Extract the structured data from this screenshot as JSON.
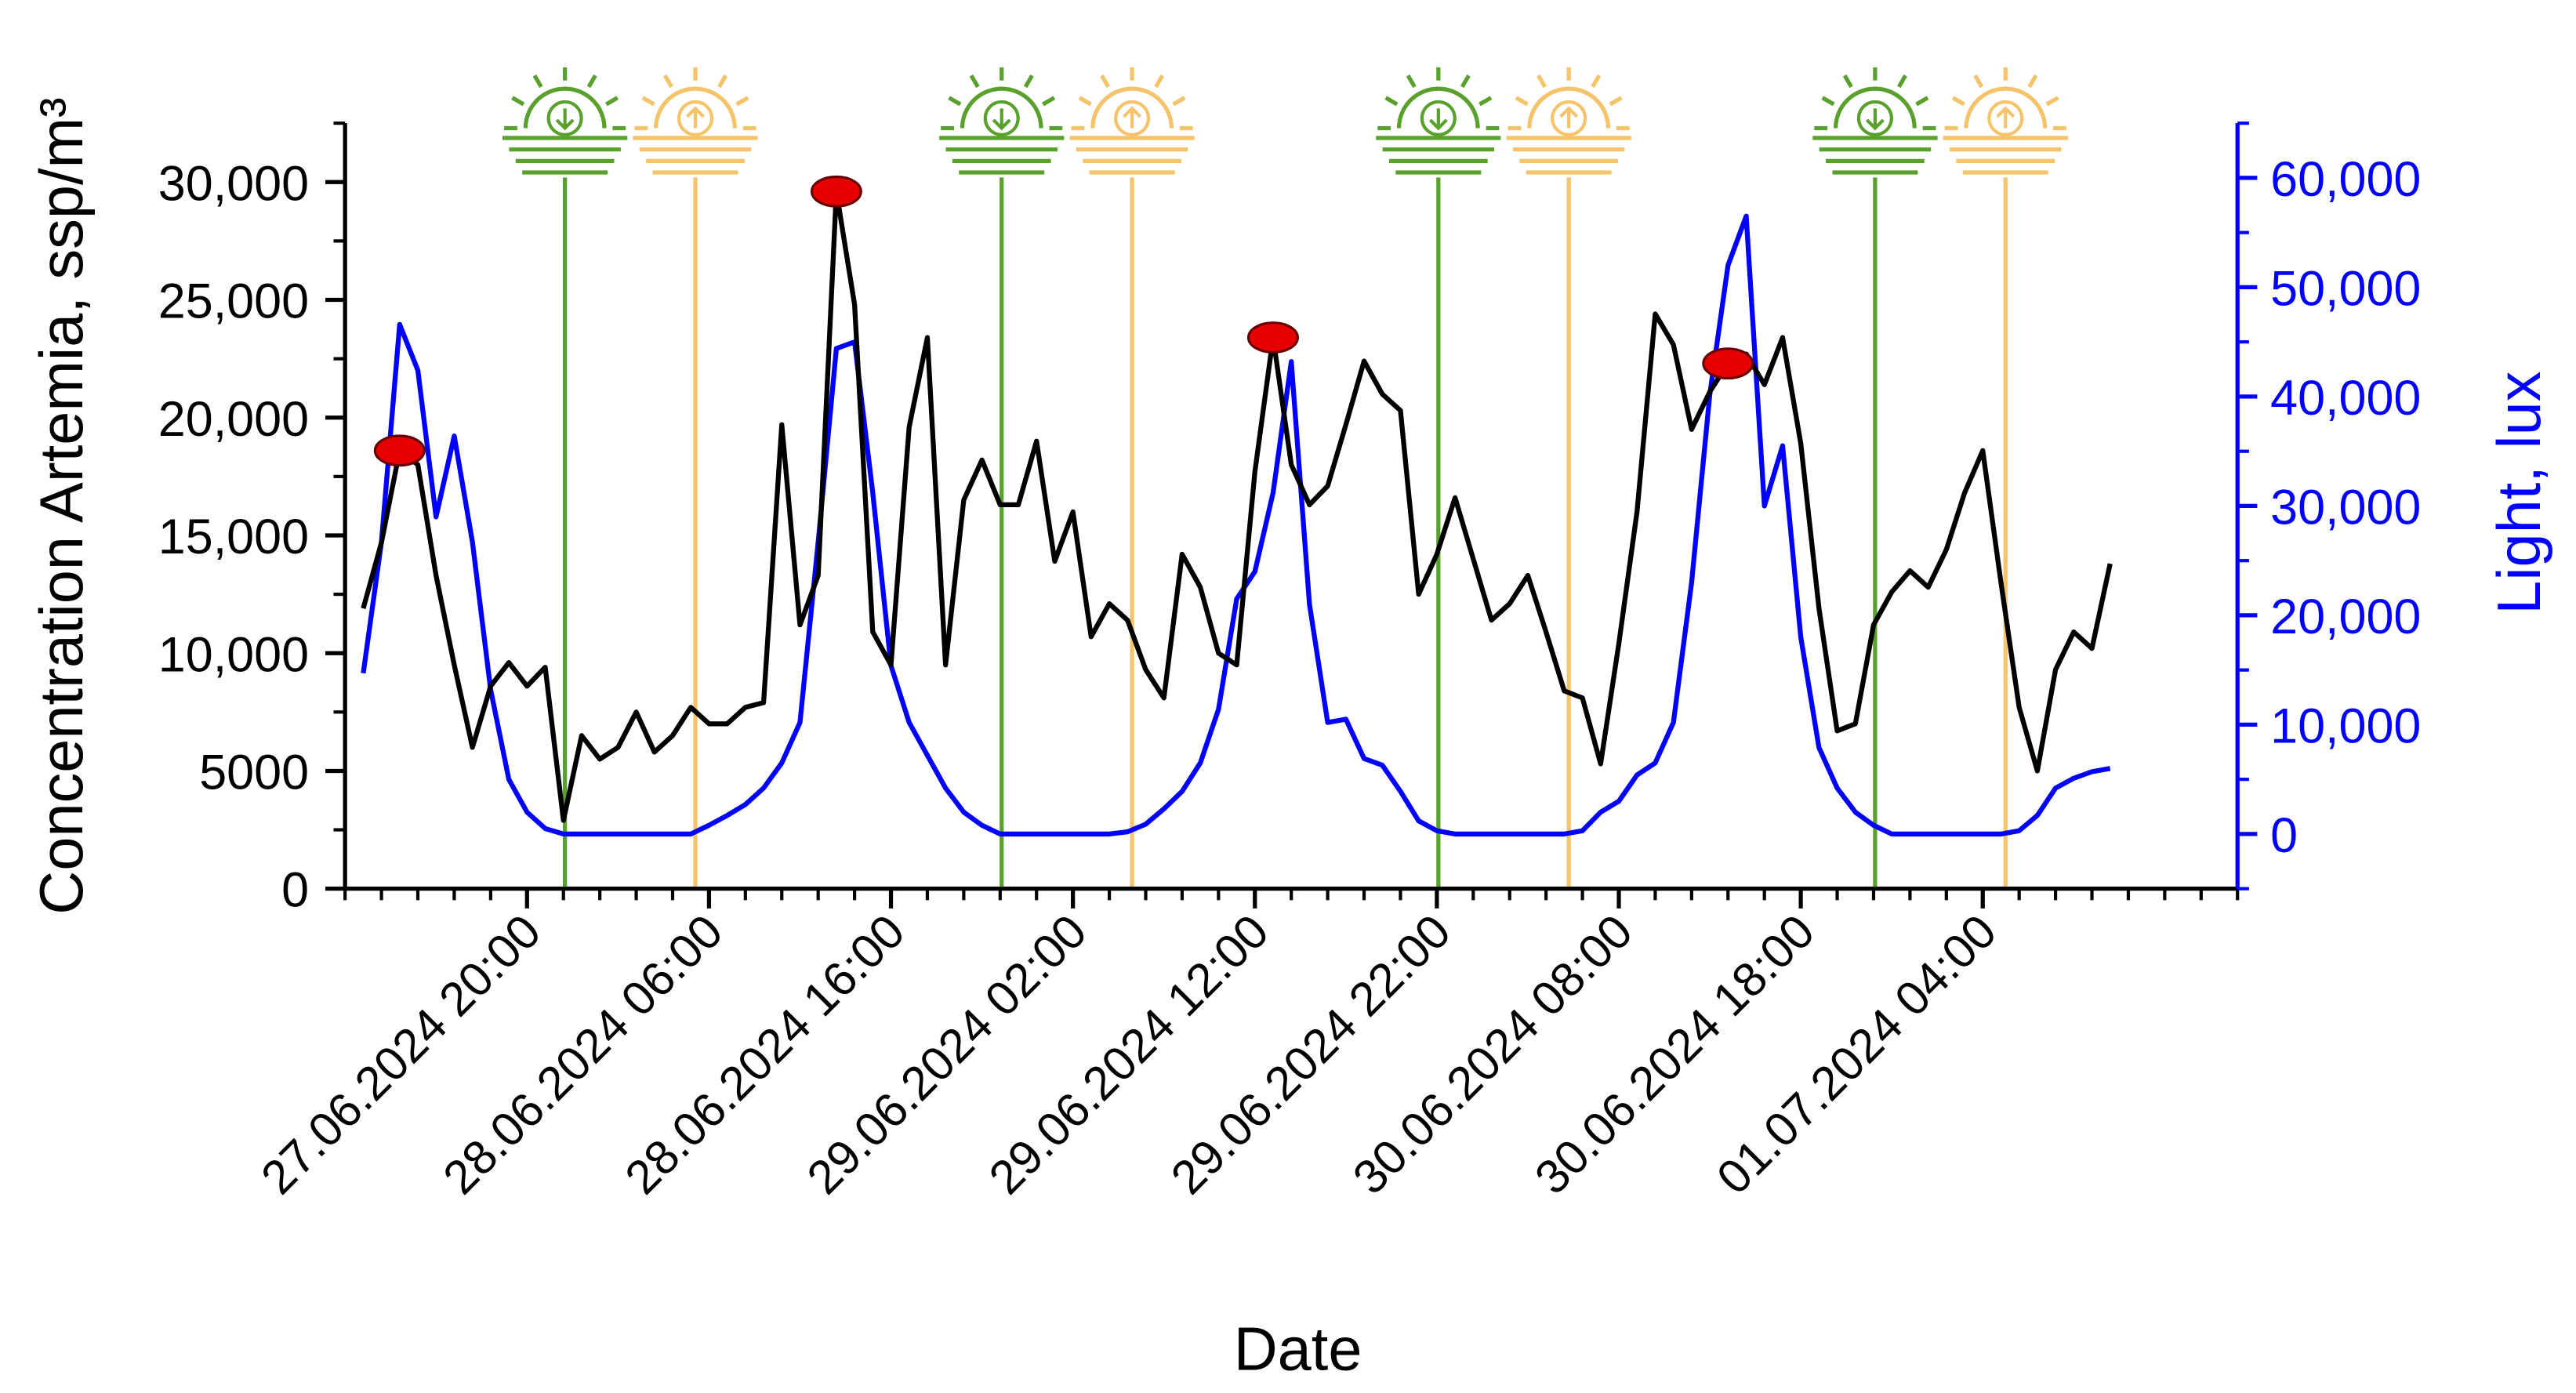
{
  "chart_data": {
    "type": "line",
    "x_label": "Date",
    "y_label": "Concentration Artemia, ssp/m³",
    "y2_label": "Light, lux",
    "x": [
      "27.06.2024 11:00",
      "27.06.2024 12:00",
      "27.06.2024 13:00",
      "27.06.2024 14:00",
      "27.06.2024 15:00",
      "27.06.2024 16:00",
      "27.06.2024 17:00",
      "27.06.2024 18:00",
      "27.06.2024 19:00",
      "27.06.2024 20:00",
      "27.06.2024 21:00",
      "27.06.2024 22:00",
      "27.06.2024 23:00",
      "28.06.2024 00:00",
      "28.06.2024 01:00",
      "28.06.2024 02:00",
      "28.06.2024 03:00",
      "28.06.2024 04:00",
      "28.06.2024 05:00",
      "28.06.2024 06:00",
      "28.06.2024 07:00",
      "28.06.2024 08:00",
      "28.06.2024 09:00",
      "28.06.2024 10:00",
      "28.06.2024 11:00",
      "28.06.2024 12:00",
      "28.06.2024 13:00",
      "28.06.2024 14:00",
      "28.06.2024 15:00",
      "28.06.2024 16:00",
      "28.06.2024 17:00",
      "28.06.2024 18:00",
      "28.06.2024 19:00",
      "28.06.2024 20:00",
      "28.06.2024 21:00",
      "28.06.2024 22:00",
      "28.06.2024 23:00",
      "29.06.2024 00:00",
      "29.06.2024 01:00",
      "29.06.2024 02:00",
      "29.06.2024 03:00",
      "29.06.2024 04:00",
      "29.06.2024 05:00",
      "29.06.2024 06:00",
      "29.06.2024 07:00",
      "29.06.2024 08:00",
      "29.06.2024 09:00",
      "29.06.2024 10:00",
      "29.06.2024 11:00",
      "29.06.2024 12:00",
      "29.06.2024 13:00",
      "29.06.2024 14:00",
      "29.06.2024 15:00",
      "29.06.2024 16:00",
      "29.06.2024 17:00",
      "29.06.2024 18:00",
      "29.06.2024 19:00",
      "29.06.2024 20:00",
      "29.06.2024 21:00",
      "29.06.2024 22:00",
      "29.06.2024 23:00",
      "30.06.2024 00:00",
      "30.06.2024 01:00",
      "30.06.2024 02:00",
      "30.06.2024 03:00",
      "30.06.2024 04:00",
      "30.06.2024 05:00",
      "30.06.2024 06:00",
      "30.06.2024 07:00",
      "30.06.2024 08:00",
      "30.06.2024 09:00",
      "30.06.2024 10:00",
      "30.06.2024 11:00",
      "30.06.2024 12:00",
      "30.06.2024 13:00",
      "30.06.2024 14:00",
      "30.06.2024 15:00",
      "30.06.2024 16:00",
      "30.06.2024 17:00",
      "30.06.2024 18:00",
      "30.06.2024 19:00",
      "30.06.2024 20:00",
      "30.06.2024 21:00",
      "30.06.2024 22:00",
      "30.06.2024 23:00",
      "01.07.2024 00:00",
      "01.07.2024 01:00",
      "01.07.2024 02:00",
      "01.07.2024 03:00",
      "01.07.2024 04:00",
      "01.07.2024 05:00",
      "01.07.2024 06:00",
      "01.07.2024 07:00",
      "01.07.2024 08:00",
      "01.07.2024 09:00",
      "01.07.2024 10:00",
      "01.07.2024 11:00"
    ],
    "xlim": [
      "27.06.2024 10:00",
      "01.07.2024 18:00"
    ],
    "xticks": [
      "27.06.2024 20:00",
      "28.06.2024 06:00",
      "28.06.2024 16:00",
      "29.06.2024 02:00",
      "29.06.2024 12:00",
      "29.06.2024 22:00",
      "30.06.2024 08:00",
      "30.06.2024 18:00",
      "01.07.2024 04:00"
    ],
    "ylim": [
      0,
      32500
    ],
    "yticks": [
      0,
      5000,
      {
        "value": 10000,
        "label": "10,000"
      },
      {
        "value": 15000,
        "label": "15,000"
      },
      {
        "value": 20000,
        "label": "20,000"
      },
      {
        "value": 25000,
        "label": "25,000"
      },
      {
        "value": 30000,
        "label": "30,000"
      }
    ],
    "y2lim": [
      -5000,
      65000
    ],
    "y2ticks": [
      0,
      {
        "value": 10000,
        "label": "10,000"
      },
      {
        "value": 20000,
        "label": "20,000"
      },
      {
        "value": 30000,
        "label": "30,000"
      },
      {
        "value": 40000,
        "label": "40,000"
      },
      {
        "value": 50000,
        "label": "50,000"
      },
      {
        "value": 60000,
        "label": "60,000"
      }
    ],
    "y2_color": "#0000ff",
    "series": [
      {
        "color": "#000000",
        "values": [
          11900,
          14700,
          18600,
          18000,
          13300,
          9500,
          6000,
          8600,
          9600,
          8600,
          9400,
          2900,
          6500,
          5500,
          6000,
          7500,
          5800,
          6500,
          7700,
          7000,
          7000,
          7700,
          7900,
          19700,
          11200,
          13300,
          29600,
          24800,
          10900,
          9500,
          19600,
          23400,
          9500,
          16500,
          18200,
          16300,
          16300,
          19000,
          13900,
          16000,
          10700,
          12100,
          11400,
          9300,
          8100,
          14200,
          12800,
          10000,
          9500,
          17700,
          23400,
          18000,
          16300,
          17100,
          19700,
          22400,
          21000,
          20300,
          12500,
          14200,
          16600,
          14000,
          11400,
          12100,
          13300,
          10900,
          8400,
          8100,
          5300,
          10400,
          16000,
          24400,
          23100,
          19500,
          21100,
          22300,
          22700,
          21400,
          23400,
          18900,
          11900,
          6700,
          7000,
          11200,
          12600,
          13500,
          12800,
          14400,
          16800,
          18600,
          13000,
          7700,
          5000,
          9300,
          10900,
          10200,
          13800
        ]
      },
      {
        "color": "#0000ff",
        "axis": "y2",
        "values": [
          14700,
          26700,
          46600,
          42400,
          29000,
          36400,
          26700,
          13200,
          5000,
          2000,
          500,
          0,
          0,
          0,
          0,
          0,
          0,
          0,
          0,
          800,
          1700,
          2700,
          4200,
          6500,
          10200,
          26700,
          44400,
          45000,
          31200,
          15400,
          10200,
          7200,
          4200,
          2000,
          800,
          0,
          0,
          0,
          0,
          0,
          0,
          0,
          200,
          900,
          2300,
          3900,
          6500,
          11400,
          21500,
          24000,
          31200,
          43200,
          21000,
          10200,
          10500,
          6900,
          6300,
          3900,
          1200,
          300,
          0,
          0,
          0,
          0,
          0,
          0,
          0,
          300,
          2000,
          3000,
          5400,
          6500,
          10200,
          23000,
          40200,
          52000,
          56500,
          30000,
          35500,
          18000,
          7900,
          4200,
          2000,
          800,
          0,
          0,
          0,
          0,
          0,
          0,
          0,
          300,
          1700,
          4200,
          5100,
          5700,
          6000
        ]
      }
    ],
    "highlights": {
      "series": 0,
      "indices": [
        2,
        26,
        50,
        75
      ],
      "color": "#e60000"
    },
    "sunset_lines": {
      "color": "#5aa02c",
      "x": [
        "27.06.2024 22:05",
        "28.06.2024 22:05",
        "29.06.2024 22:05",
        "30.06.2024 22:05"
      ]
    },
    "sunrise_lines": {
      "color": "#f5c36a",
      "x": [
        "28.06.2024 05:15",
        "29.06.2024 05:15",
        "30.06.2024 05:15",
        "01.07.2024 05:15"
      ]
    }
  }
}
